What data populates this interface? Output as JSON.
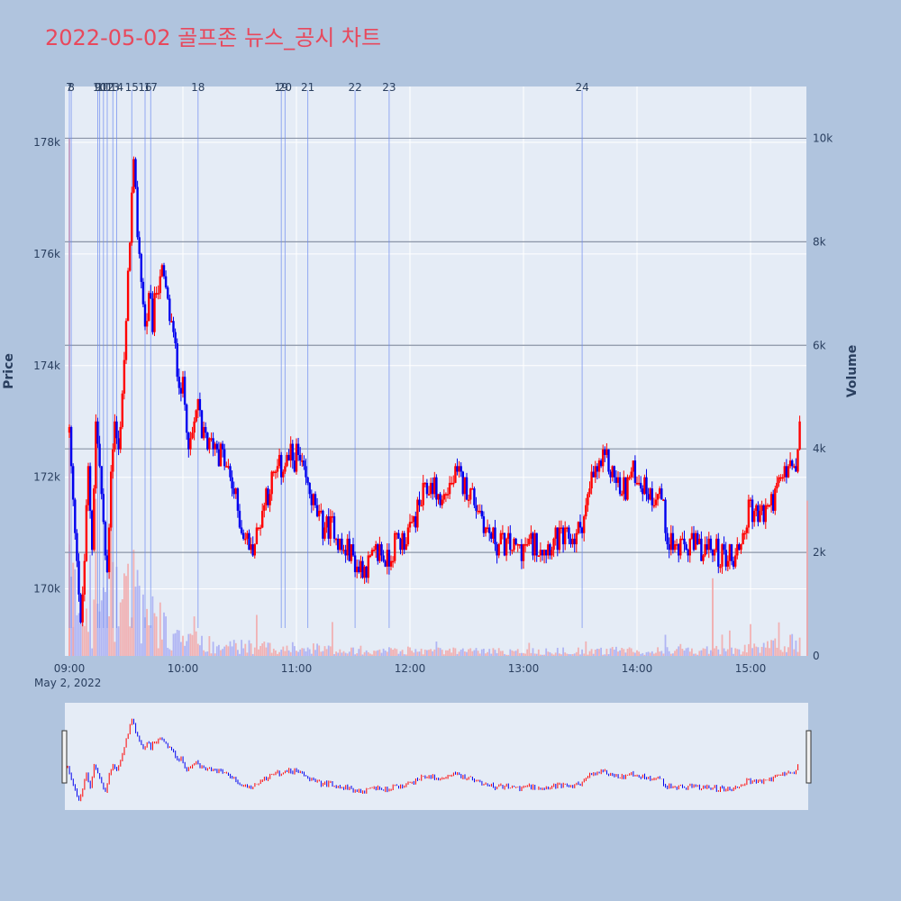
{
  "colors": {
    "page_bg": "#b0c4de",
    "plot_bg": "#e5ecf6",
    "up": "#ff0000",
    "down": "#0000ee",
    "title": "#e8485c",
    "event_line": "#6f8cf0",
    "text": "#2a3f5f"
  },
  "chart_data": {
    "type": "candlestick",
    "title": "2022-05-02 골프존 뉴스_공시 차트",
    "ylabel": "Price",
    "y2label": "Volume",
    "date_label": "May 2, 2022",
    "x_range": [
      "09:00",
      "15:30"
    ],
    "x_ticks": [
      "09:00",
      "10:00",
      "11:00",
      "12:00",
      "13:00",
      "14:00",
      "15:00"
    ],
    "y_range": [
      168800,
      179000
    ],
    "y_ticks": [
      170000,
      172000,
      174000,
      176000,
      178000
    ],
    "y_tick_labels": [
      "170k",
      "172k",
      "174k",
      "176k",
      "178k"
    ],
    "y2_range": [
      0,
      11000
    ],
    "y2_ticks": [
      0,
      2000,
      4000,
      6000,
      8000,
      10000
    ],
    "y2_tick_labels": [
      "0",
      "2k",
      "4k",
      "6k",
      "8k",
      "10k"
    ],
    "price_path": [
      [
        "09:00",
        172800
      ],
      [
        "09:02",
        171500
      ],
      [
        "09:04",
        170700
      ],
      [
        "09:06",
        169200
      ],
      [
        "09:08",
        170500
      ],
      [
        "09:10",
        172100
      ],
      [
        "09:12",
        170800
      ],
      [
        "09:14",
        173000
      ],
      [
        "09:16",
        172200
      ],
      [
        "09:18",
        171000
      ],
      [
        "09:20",
        170300
      ],
      [
        "09:22",
        172200
      ],
      [
        "09:24",
        173000
      ],
      [
        "09:26",
        172400
      ],
      [
        "09:28",
        173600
      ],
      [
        "09:30",
        174600
      ],
      [
        "09:32",
        176400
      ],
      [
        "09:34",
        177500
      ],
      [
        "09:36",
        176400
      ],
      [
        "09:38",
        175600
      ],
      [
        "09:40",
        174700
      ],
      [
        "09:42",
        175100
      ],
      [
        "09:44",
        174800
      ],
      [
        "09:46",
        175400
      ],
      [
        "09:48",
        175700
      ],
      [
        "09:50",
        175500
      ],
      [
        "09:52",
        175100
      ],
      [
        "09:54",
        174700
      ],
      [
        "09:56",
        174200
      ],
      [
        "09:58",
        173800
      ],
      [
        "10:00",
        173600
      ],
      [
        "10:02",
        173000
      ],
      [
        "10:04",
        172500
      ],
      [
        "10:06",
        172900
      ],
      [
        "10:08",
        173400
      ],
      [
        "10:10",
        172600
      ],
      [
        "10:12",
        172800
      ],
      [
        "10:14",
        172500
      ],
      [
        "10:16",
        172700
      ],
      [
        "10:20",
        172400
      ],
      [
        "10:24",
        172100
      ],
      [
        "10:28",
        171600
      ],
      [
        "10:32",
        171000
      ],
      [
        "10:36",
        170700
      ],
      [
        "10:40",
        171100
      ],
      [
        "10:44",
        171700
      ],
      [
        "10:48",
        172000
      ],
      [
        "10:52",
        172200
      ],
      [
        "10:56",
        172300
      ],
      [
        "11:00",
        172400
      ],
      [
        "11:04",
        172000
      ],
      [
        "11:08",
        171600
      ],
      [
        "11:12",
        171200
      ],
      [
        "11:16",
        171100
      ],
      [
        "11:20",
        171100
      ],
      [
        "11:24",
        170700
      ],
      [
        "11:28",
        170700
      ],
      [
        "11:32",
        170400
      ],
      [
        "11:36",
        170400
      ],
      [
        "11:40",
        170500
      ],
      [
        "11:44",
        170700
      ],
      [
        "11:48",
        170500
      ],
      [
        "11:52",
        170800
      ],
      [
        "11:56",
        170900
      ],
      [
        "12:00",
        171000
      ],
      [
        "12:04",
        171400
      ],
      [
        "12:08",
        171700
      ],
      [
        "12:12",
        171900
      ],
      [
        "12:16",
        171500
      ],
      [
        "12:20",
        171800
      ],
      [
        "12:24",
        172000
      ],
      [
        "12:28",
        171900
      ],
      [
        "12:32",
        171700
      ],
      [
        "12:36",
        171500
      ],
      [
        "12:40",
        171100
      ],
      [
        "12:44",
        170900
      ],
      [
        "12:48",
        170800
      ],
      [
        "12:52",
        170800
      ],
      [
        "12:56",
        170700
      ],
      [
        "13:00",
        170700
      ],
      [
        "13:04",
        170800
      ],
      [
        "13:08",
        170800
      ],
      [
        "13:12",
        170800
      ],
      [
        "13:16",
        170800
      ],
      [
        "13:20",
        170900
      ],
      [
        "13:24",
        170900
      ],
      [
        "13:28",
        170900
      ],
      [
        "13:32",
        171300
      ],
      [
        "13:36",
        171900
      ],
      [
        "13:40",
        172200
      ],
      [
        "13:44",
        172300
      ],
      [
        "13:48",
        172000
      ],
      [
        "13:52",
        171700
      ],
      [
        "13:56",
        172000
      ],
      [
        "14:00",
        172100
      ],
      [
        "14:04",
        171800
      ],
      [
        "14:08",
        171700
      ],
      [
        "14:12",
        171800
      ],
      [
        "14:16",
        171000
      ],
      [
        "14:20",
        170700
      ],
      [
        "14:24",
        170700
      ],
      [
        "14:28",
        170800
      ],
      [
        "14:32",
        170700
      ],
      [
        "14:36",
        170700
      ],
      [
        "14:40",
        170700
      ],
      [
        "14:44",
        170600
      ],
      [
        "14:48",
        170600
      ],
      [
        "14:52",
        170600
      ],
      [
        "14:56",
        171000
      ],
      [
        "15:00",
        171500
      ],
      [
        "15:04",
        171300
      ],
      [
        "15:08",
        171400
      ],
      [
        "15:12",
        171600
      ],
      [
        "15:16",
        171900
      ],
      [
        "15:20",
        172200
      ],
      [
        "15:24",
        172100
      ],
      [
        "15:26",
        172800
      ]
    ],
    "volume_shape": [
      [
        "09:00",
        1200
      ],
      [
        "09:06",
        900
      ],
      [
        "09:12",
        700
      ],
      [
        "09:18",
        900
      ],
      [
        "09:24",
        1300
      ],
      [
        "09:30",
        1600
      ],
      [
        "09:36",
        1100
      ],
      [
        "09:42",
        700
      ],
      [
        "09:48",
        600
      ],
      [
        "09:54",
        400
      ],
      [
        "10:00",
        300
      ],
      [
        "10:10",
        250
      ],
      [
        "10:20",
        200
      ],
      [
        "10:30",
        180
      ],
      [
        "11:00",
        150
      ],
      [
        "12:00",
        100
      ],
      [
        "13:00",
        90
      ],
      [
        "14:00",
        100
      ],
      [
        "14:40",
        110
      ],
      [
        "15:00",
        130
      ],
      [
        "15:25",
        250
      ]
    ],
    "events": [
      {
        "label": "7",
        "time": "09:00"
      },
      {
        "label": "8",
        "time": "09:01"
      },
      {
        "label": "9",
        "time": "09:15"
      },
      {
        "label": "10",
        "time": "09:16"
      },
      {
        "label": "11",
        "time": "09:18"
      },
      {
        "label": "12",
        "time": "09:20"
      },
      {
        "label": "13",
        "time": "09:23"
      },
      {
        "label": "14",
        "time": "09:25"
      },
      {
        "label": "15",
        "time": "09:33"
      },
      {
        "label": "16",
        "time": "09:40"
      },
      {
        "label": "17",
        "time": "09:43"
      },
      {
        "label": "18",
        "time": "10:08"
      },
      {
        "label": "19",
        "time": "10:52"
      },
      {
        "label": "20",
        "time": "10:54"
      },
      {
        "label": "21",
        "time": "11:06"
      },
      {
        "label": "22",
        "time": "11:31"
      },
      {
        "label": "23",
        "time": "11:49"
      },
      {
        "label": "24",
        "time": "13:31"
      }
    ]
  }
}
